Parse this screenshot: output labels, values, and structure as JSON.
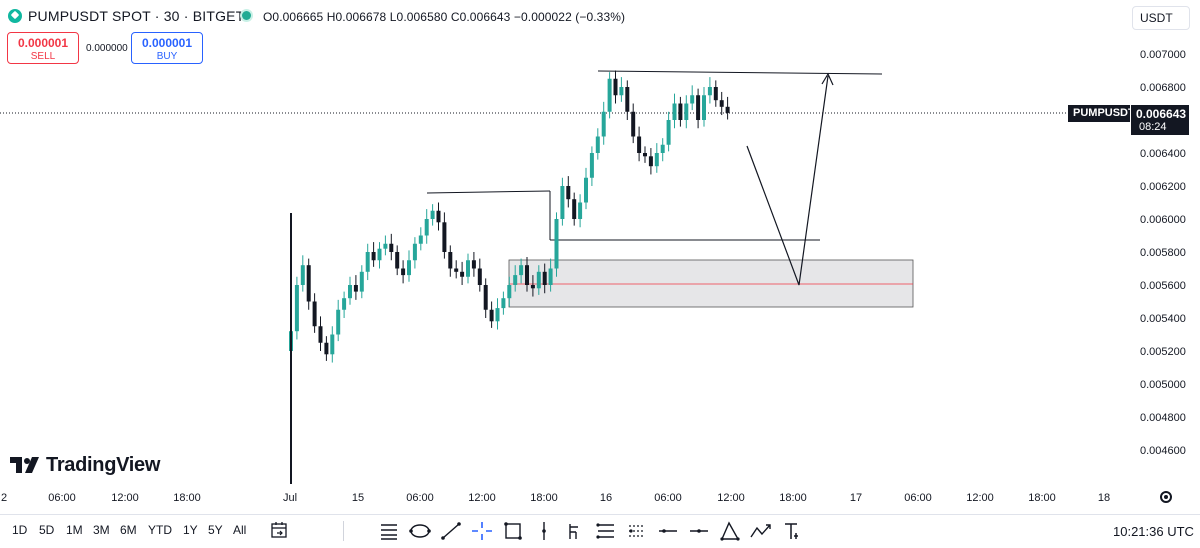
{
  "header": {
    "title": "PUMPUSDT SPOT · 30 · BITGET",
    "ohlc": "O0.006665 H0.006678 L0.006580 C0.006643 −0.000022 (−0.33%)",
    "currency": "USDT"
  },
  "trade": {
    "sell_price": "0.000001",
    "sell_label": "SELL",
    "spread": "0.000000",
    "buy_price": "0.000001",
    "buy_label": "BUY"
  },
  "price_axis": {
    "labels": [
      "0.007000",
      "0.006800",
      "0.006400",
      "0.006200",
      "0.006000",
      "0.005800",
      "0.005600",
      "0.005400",
      "0.005200",
      "0.005000",
      "0.004800",
      "0.004600"
    ],
    "values": [
      0.007,
      0.0068,
      0.0064,
      0.0062,
      0.006,
      0.0058,
      0.0056,
      0.0054,
      0.0052,
      0.005,
      0.0048,
      0.0046
    ],
    "symbol_tag": "PUMPUSDT",
    "last_price": "0.006643",
    "countdown": "08:24"
  },
  "time_axis": {
    "labels": [
      "2",
      "06:00",
      "12:00",
      "18:00",
      "Jul",
      "15",
      "06:00",
      "12:00",
      "18:00",
      "16",
      "06:00",
      "12:00",
      "18:00",
      "17",
      "06:00",
      "12:00",
      "18:00",
      "18"
    ]
  },
  "logo": "TradingView",
  "ranges": [
    "1D",
    "5D",
    "1M",
    "3M",
    "6M",
    "YTD",
    "1Y",
    "5Y",
    "All"
  ],
  "clock": "10:21:36 UTC",
  "tools": [
    "trend-lines-icon",
    "ellipse-icon",
    "line-icon",
    "crosshair-icon",
    "rectangle-icon",
    "vertical-line-icon",
    "long-position-icon",
    "parallel-channel-icon",
    "fib-icon",
    "horizontal-line-icon",
    "horizontal-ray-icon",
    "triangle-icon",
    "path-icon",
    "text-icon"
  ],
  "colors": {
    "up": "#26a69a",
    "down": "#131722",
    "sell": "#f23645",
    "buy": "#2962ff"
  }
}
